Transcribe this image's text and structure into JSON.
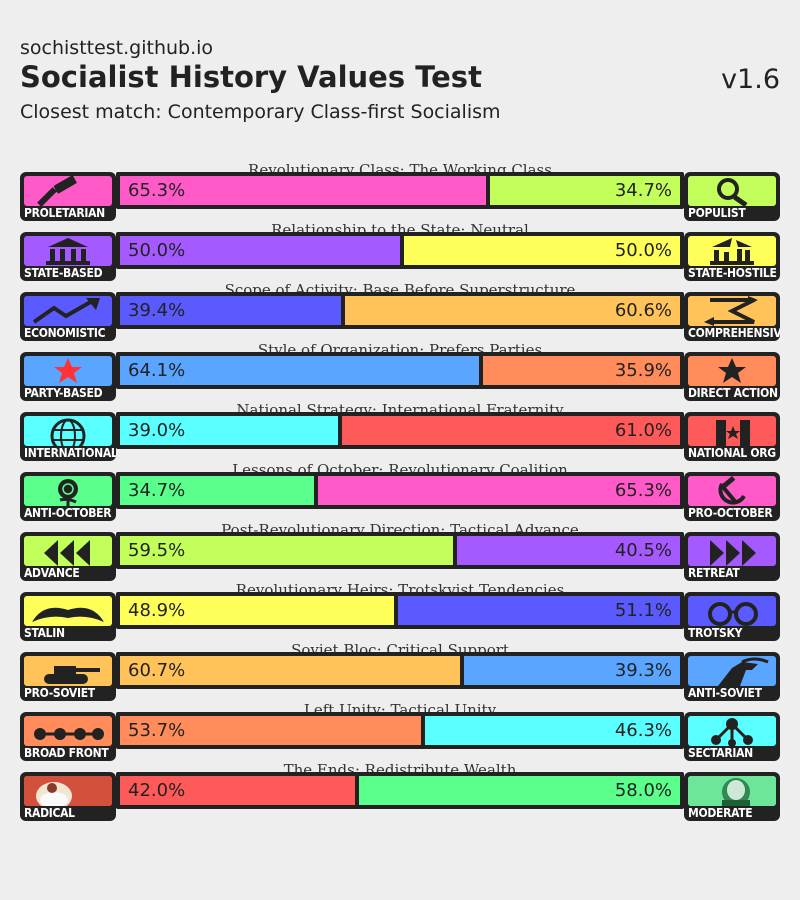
{
  "header": {
    "site": "sochisttest.github.io",
    "title": "Socialist History Values Test",
    "version": "v1.6",
    "subtitle": "Closest match: Contemporary Class-first Socialism"
  },
  "axes": [
    {
      "title": "Revolutionary Class: The Working Class",
      "left": {
        "label": "PROLETARIAN",
        "icon": "hammer-icon",
        "color": "#ff5ac8"
      },
      "right": {
        "label": "POPULIST",
        "icon": "magnifier-icon",
        "color": "#c3ff5a"
      },
      "left_pct": "65.3%",
      "right_pct": "34.7%",
      "left_value": 65.3
    },
    {
      "title": "Relationship to the State: Neutral",
      "left": {
        "label": "STATE-BASED",
        "icon": "government-building-icon",
        "color": "#a55aff"
      },
      "right": {
        "label": "STATE-HOSTILE",
        "icon": "broken-building-icon",
        "color": "#ffff5a"
      },
      "left_pct": "50.0%",
      "right_pct": "50.0%",
      "left_value": 50.0
    },
    {
      "title": "Scope of Activity: Base Before Superstructure",
      "left": {
        "label": "ECONOMISTIC",
        "icon": "rising-chart-icon",
        "color": "#5a5aff"
      },
      "right": {
        "label": "COMPREHENSIVE",
        "icon": "crossed-arrows-icon",
        "color": "#ffc35a"
      },
      "left_pct": "39.4%",
      "right_pct": "60.6%",
      "left_value": 39.4
    },
    {
      "title": "Style of Organization: Prefers Parties",
      "left": {
        "label": "PARTY-BASED",
        "icon": "red-star-icon",
        "color": "#5aa5ff"
      },
      "right": {
        "label": "DIRECT ACTION",
        "icon": "black-star-icon",
        "color": "#ff8c5a"
      },
      "left_pct": "64.1%",
      "right_pct": "35.9%",
      "left_value": 64.1
    },
    {
      "title": "National Strategy: International Fraternity",
      "left": {
        "label": "INTERNATIONAL",
        "icon": "globe-icon",
        "color": "#5affff"
      },
      "right": {
        "label": "NATIONAL ORG",
        "icon": "national-flag-icon",
        "color": "#ff5a5a"
      },
      "left_pct": "39.0%",
      "right_pct": "61.0%",
      "left_value": 39.0
    },
    {
      "title": "Lessons of October: Revolutionary Coalition",
      "left": {
        "label": "ANTI-OCTOBER",
        "icon": "rose-icon",
        "color": "#5aff8c"
      },
      "right": {
        "label": "PRO-OCTOBER",
        "icon": "hammer-sickle-icon",
        "color": "#ff5ac8"
      },
      "left_pct": "34.7%",
      "right_pct": "65.3%",
      "left_value": 34.7
    },
    {
      "title": "Post-Revolutionary Direction: Tactical Advance",
      "left": {
        "label": "ADVANCE",
        "icon": "rewind-arrows-icon",
        "color": "#c3ff5a"
      },
      "right": {
        "label": "RETREAT",
        "icon": "forward-arrows-icon",
        "color": "#a55aff"
      },
      "left_pct": "59.5%",
      "right_pct": "40.5%",
      "left_value": 59.5
    },
    {
      "title": "Revolutionary Heirs: Trotskyist Tendencies",
      "left": {
        "label": "STALIN",
        "icon": "mustache-icon",
        "color": "#ffff5a"
      },
      "right": {
        "label": "TROTSKY",
        "icon": "glasses-icon",
        "color": "#5a5aff"
      },
      "left_pct": "48.9%",
      "right_pct": "51.1%",
      "left_value": 48.9
    },
    {
      "title": "Soviet Bloc: Critical Support",
      "left": {
        "label": "PRO-SOVIET",
        "icon": "tank-icon",
        "color": "#ffc35a"
      },
      "right": {
        "label": "ANTI-SOVIET",
        "icon": "rider-icon",
        "color": "#5aa5ff"
      },
      "left_pct": "60.7%",
      "right_pct": "39.3%",
      "left_value": 60.7
    },
    {
      "title": "Left Unity: Tactical Unity",
      "left": {
        "label": "BROAD FRONT",
        "icon": "linked-dots-icon",
        "color": "#ff8c5a"
      },
      "right": {
        "label": "SECTARIAN",
        "icon": "branching-nodes-icon",
        "color": "#5affff"
      },
      "left_pct": "53.7%",
      "right_pct": "46.3%",
      "left_value": 53.7
    },
    {
      "title": "The Ends: Redistribute Wealth",
      "left": {
        "label": "RADICAL",
        "icon": "marx-portrait-icon",
        "color": "#ff5a5a"
      },
      "right": {
        "label": "MODERATE",
        "icon": "politician-portrait-icon",
        "color": "#5aff8c"
      },
      "left_pct": "42.0%",
      "right_pct": "58.0%",
      "left_value": 42.0
    }
  ]
}
